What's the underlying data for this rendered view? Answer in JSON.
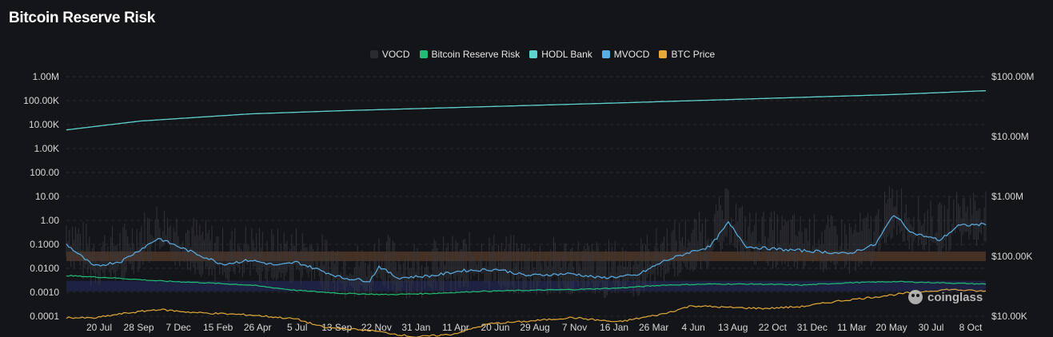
{
  "chart_data": {
    "type": "line",
    "title": "Bitcoin Reserve Risk",
    "legend_position": "top-center",
    "grid": true,
    "series": [
      {
        "name": "VOCD",
        "color": "#3a3a3a",
        "axis": "left"
      },
      {
        "name": "Bitcoin Reserve Risk",
        "color": "#1fbf75",
        "axis": "left"
      },
      {
        "name": "HODL Bank",
        "color": "#5fd3d0",
        "axis": "left"
      },
      {
        "name": "MVOCD",
        "color": "#5aaee6",
        "axis": "left"
      },
      {
        "name": "BTC Price",
        "color": "#e4a937",
        "axis": "right"
      }
    ],
    "x_tick_labels": [
      "20 Jul",
      "28 Sep",
      "7 Dec",
      "15 Feb",
      "26 Apr",
      "5 Jul",
      "13 Sep",
      "22 Nov",
      "31 Jan",
      "11 Apr",
      "20 Jun",
      "29 Aug",
      "7 Nov",
      "16 Jan",
      "26 Mar",
      "4 Jun",
      "13 Aug",
      "22 Oct",
      "31 Dec",
      "11 Mar",
      "20 May",
      "30 Jul",
      "8 Oct"
    ],
    "y_left": {
      "scale": "log",
      "range": [
        0.0001,
        1000000
      ],
      "tick_labels": [
        "1.00M",
        "100.00K",
        "10.00K",
        "1.00K",
        "100.00",
        "10.00",
        "1.00",
        "0.1000",
        "0.0100",
        "0.0010",
        "0.0001"
      ]
    },
    "y_right": {
      "scale": "log",
      "range": [
        10000,
        100000000
      ],
      "tick_labels": [
        "$100.00M",
        "$10.00M",
        "$1.00M",
        "$100.00K",
        "$10.00K"
      ]
    },
    "bands": [
      {
        "y_from": 0.02,
        "y_to": 0.05,
        "color": "#4a3326"
      },
      {
        "y_from": 0.0011,
        "y_to": 0.003,
        "color": "#1e2247"
      }
    ],
    "points": {
      "hodl_bank": [
        [
          0,
          6000
        ],
        [
          0.08,
          14000
        ],
        [
          0.2,
          28000
        ],
        [
          0.3,
          38000
        ],
        [
          0.45,
          55000
        ],
        [
          0.6,
          80000
        ],
        [
          0.75,
          120000
        ],
        [
          0.9,
          180000
        ],
        [
          1,
          260000
        ]
      ],
      "btc_price_usd": [
        [
          0,
          9500
        ],
        [
          0.03,
          9300
        ],
        [
          0.06,
          11000
        ],
        [
          0.1,
          13000
        ],
        [
          0.14,
          11500
        ],
        [
          0.2,
          10500
        ],
        [
          0.25,
          9000
        ],
        [
          0.28,
          6500
        ],
        [
          0.33,
          5800
        ],
        [
          0.38,
          4500
        ],
        [
          0.42,
          5000
        ],
        [
          0.46,
          7500
        ],
        [
          0.5,
          8200
        ],
        [
          0.55,
          9500
        ],
        [
          0.6,
          8000
        ],
        [
          0.65,
          11000
        ],
        [
          0.68,
          15000
        ],
        [
          0.72,
          14000
        ],
        [
          0.76,
          13500
        ],
        [
          0.8,
          14500
        ],
        [
          0.84,
          18000
        ],
        [
          0.88,
          21000
        ],
        [
          0.92,
          25000
        ],
        [
          0.96,
          28000
        ],
        [
          1,
          26000
        ]
      ],
      "mvocd": [
        [
          0,
          0.1
        ],
        [
          0.03,
          0.012
        ],
        [
          0.06,
          0.02
        ],
        [
          0.1,
          0.18
        ],
        [
          0.13,
          0.06
        ],
        [
          0.17,
          0.015
        ],
        [
          0.2,
          0.022
        ],
        [
          0.23,
          0.013
        ],
        [
          0.25,
          0.018
        ],
        [
          0.27,
          0.01
        ],
        [
          0.3,
          0.004
        ],
        [
          0.33,
          0.003
        ],
        [
          0.34,
          0.012
        ],
        [
          0.36,
          0.004
        ],
        [
          0.4,
          0.005
        ],
        [
          0.43,
          0.008
        ],
        [
          0.47,
          0.009
        ],
        [
          0.5,
          0.005
        ],
        [
          0.55,
          0.006
        ],
        [
          0.58,
          0.004
        ],
        [
          0.62,
          0.005
        ],
        [
          0.65,
          0.02
        ],
        [
          0.68,
          0.05
        ],
        [
          0.7,
          0.08
        ],
        [
          0.72,
          0.8
        ],
        [
          0.74,
          0.08
        ],
        [
          0.78,
          0.06
        ],
        [
          0.82,
          0.05
        ],
        [
          0.85,
          0.04
        ],
        [
          0.88,
          0.1
        ],
        [
          0.9,
          1.8
        ],
        [
          0.92,
          0.3
        ],
        [
          0.95,
          0.15
        ],
        [
          0.97,
          0.6
        ],
        [
          1,
          0.7
        ]
      ],
      "bitcoin_reserve_risk": [
        [
          0,
          0.005
        ],
        [
          0.05,
          0.004
        ],
        [
          0.1,
          0.003
        ],
        [
          0.15,
          0.0025
        ],
        [
          0.2,
          0.002
        ],
        [
          0.25,
          0.0012
        ],
        [
          0.3,
          0.0009
        ],
        [
          0.35,
          0.0008
        ],
        [
          0.4,
          0.0009
        ],
        [
          0.45,
          0.0011
        ],
        [
          0.5,
          0.0012
        ],
        [
          0.55,
          0.0013
        ],
        [
          0.6,
          0.0015
        ],
        [
          0.65,
          0.002
        ],
        [
          0.7,
          0.0022
        ],
        [
          0.75,
          0.0022
        ],
        [
          0.8,
          0.002
        ],
        [
          0.85,
          0.0025
        ],
        [
          0.9,
          0.0028
        ],
        [
          0.95,
          0.0025
        ],
        [
          1,
          0.0022
        ]
      ]
    }
  },
  "watermark": {
    "text": "coinglass"
  }
}
